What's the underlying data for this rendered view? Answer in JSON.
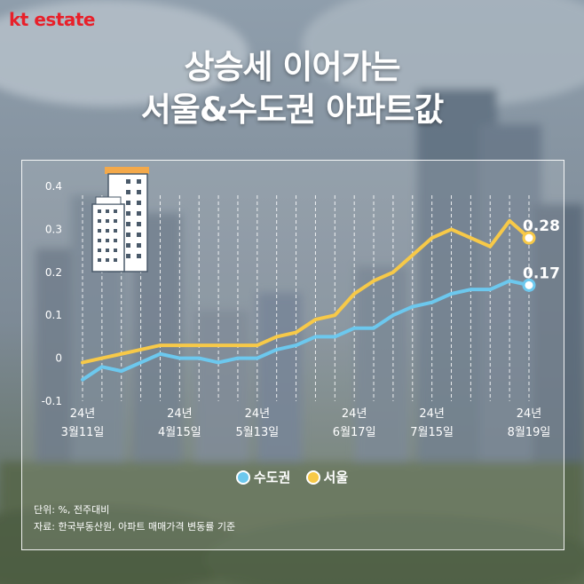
{
  "brand": {
    "kt": "kt",
    "estate": "estate"
  },
  "title_line1": "상승세 이어가는",
  "title_line2": "서울&수도권 아파트값",
  "legend": {
    "capital": "수도권",
    "seoul": "서울"
  },
  "notes": {
    "unit": "단위: %, 전주대비",
    "source": "자료: 한국부동산원, 아파트 매매가격 변동률 기준"
  },
  "colors": {
    "capital": "#6cc8ee",
    "seoul": "#f7c948",
    "brand": "#e8202a"
  },
  "chart_data": {
    "type": "line",
    "ylim": [
      -0.1,
      0.4
    ],
    "yticks": [
      "0.4",
      "0.3",
      "0.2",
      "0.1",
      "0",
      "-0.1"
    ],
    "x_tick_labels": [
      {
        "index": 0,
        "line1": "24년",
        "line2": "3월11일"
      },
      {
        "index": 5,
        "line1": "24년",
        "line2": "4월15일"
      },
      {
        "index": 9,
        "line1": "24년",
        "line2": "5월13일"
      },
      {
        "index": 14,
        "line1": "24년",
        "line2": "6월17일"
      },
      {
        "index": 18,
        "line1": "24년",
        "line2": "7월15일"
      },
      {
        "index": 23,
        "line1": "24년",
        "line2": "8월19일"
      }
    ],
    "series": [
      {
        "name": "서울",
        "color": "#f7c948",
        "values": [
          -0.01,
          0.0,
          0.01,
          0.02,
          0.03,
          0.03,
          0.03,
          0.03,
          0.03,
          0.03,
          0.05,
          0.06,
          0.09,
          0.1,
          0.15,
          0.18,
          0.2,
          0.24,
          0.28,
          0.3,
          0.28,
          0.26,
          0.32,
          0.28
        ],
        "end_label": "0.28"
      },
      {
        "name": "수도권",
        "color": "#6cc8ee",
        "values": [
          -0.05,
          -0.02,
          -0.03,
          -0.01,
          0.01,
          0.0,
          0.0,
          -0.01,
          0.0,
          0.0,
          0.02,
          0.03,
          0.05,
          0.05,
          0.07,
          0.07,
          0.1,
          0.12,
          0.13,
          0.15,
          0.16,
          0.16,
          0.18,
          0.17
        ],
        "end_label": "0.17"
      }
    ]
  }
}
